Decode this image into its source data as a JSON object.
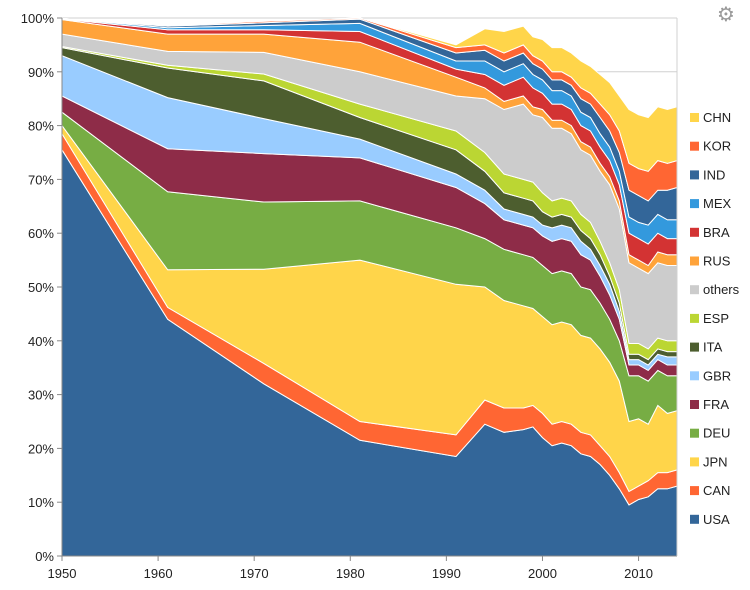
{
  "settings_icon": "gear-icon",
  "chart_data": {
    "type": "area",
    "stacked": true,
    "normalized_percent": true,
    "title": "",
    "xlabel": "",
    "ylabel": "",
    "xlim": [
      1950,
      2014
    ],
    "ylim": [
      0,
      100
    ],
    "x_ticks": [
      1950,
      1960,
      1970,
      1980,
      1990,
      2000,
      2010
    ],
    "y_ticks": [
      "0%",
      "10%",
      "20%",
      "30%",
      "40%",
      "50%",
      "60%",
      "70%",
      "80%",
      "90%",
      "100%"
    ],
    "grid": "horizontal",
    "legend_position": "right",
    "x": [
      1950,
      1961,
      1971,
      1981,
      1991,
      1994,
      1996,
      1998,
      1999,
      2000,
      2001,
      2002,
      2003,
      2004,
      2005,
      2006,
      2007,
      2008,
      2009,
      2010,
      2011,
      2012,
      2013,
      2014
    ],
    "series": [
      {
        "name": "USA",
        "color": "#336699",
        "values": [
          75.5,
          44,
          32,
          21.5,
          18.5,
          24.5,
          23,
          23.5,
          24,
          22,
          20.5,
          21,
          20.5,
          19,
          18.5,
          17,
          15,
          12.5,
          9.5,
          10.5,
          11,
          12.5,
          12.5,
          13
        ]
      },
      {
        "name": "CAN",
        "color": "#FF6633",
        "values": [
          3,
          2.2,
          3.8,
          3.5,
          4,
          4.5,
          4.5,
          4,
          4,
          4.5,
          4,
          4,
          4,
          4,
          4,
          3.5,
          3.5,
          3,
          2.5,
          2.5,
          3,
          3,
          3,
          3
        ]
      },
      {
        "name": "JPN",
        "color": "#FFD54A",
        "values": [
          1.5,
          7,
          17.5,
          30,
          28,
          21,
          20,
          19,
          18,
          18,
          18.5,
          18.5,
          18.5,
          18,
          18,
          18,
          17.5,
          17,
          13,
          12.5,
          10.5,
          12.5,
          11,
          11
        ]
      },
      {
        "name": "DEU",
        "color": "#77AD44",
        "values": [
          2.5,
          14.5,
          12.5,
          11,
          10.5,
          9,
          9.5,
          9.5,
          9.5,
          9.5,
          9.5,
          9.5,
          9.5,
          9,
          9,
          8.5,
          8,
          7.5,
          8.5,
          8,
          8,
          6.5,
          7,
          6.5
        ]
      },
      {
        "name": "FRA",
        "color": "#8E2C48",
        "values": [
          3,
          8,
          9,
          8,
          7.5,
          6.5,
          5.5,
          5.5,
          5.5,
          5.5,
          6,
          6,
          6,
          6,
          5.5,
          5,
          4.5,
          4,
          2,
          2,
          2,
          2,
          2,
          2
        ]
      },
      {
        "name": "GBR",
        "color": "#99CCFF",
        "values": [
          7.5,
          9.5,
          6.5,
          3.5,
          2.5,
          2.5,
          2,
          2,
          2,
          2,
          2.5,
          2.5,
          2.5,
          2.5,
          2,
          2,
          2,
          1.5,
          1,
          1,
          1,
          1,
          1.5,
          1.5
        ]
      },
      {
        "name": "ITA",
        "color": "#4D5E2F",
        "values": [
          1.5,
          5.5,
          7,
          4,
          4.5,
          3.5,
          3,
          3,
          3,
          2.5,
          2,
          2,
          2,
          2,
          2,
          2,
          1.5,
          1.5,
          1,
          1,
          1,
          1,
          1,
          1
        ]
      },
      {
        "name": "ESP",
        "color": "#BBD633",
        "values": [
          0.2,
          0.5,
          1.3,
          2.5,
          3.5,
          3.5,
          3.5,
          3.5,
          3.5,
          3.5,
          3,
          3,
          3,
          3,
          3,
          2.5,
          2.5,
          2.5,
          2,
          2,
          2,
          2,
          2,
          2
        ]
      },
      {
        "name": "others",
        "color": "#CCCCCC",
        "values": [
          2.3,
          2.6,
          4,
          6,
          6.5,
          10,
          12,
          14,
          12.5,
          14,
          13.5,
          13,
          12.5,
          12,
          12.5,
          13,
          14.5,
          15,
          15,
          14,
          14,
          14,
          14,
          14
        ]
      },
      {
        "name": "RUS",
        "color": "#FFA33A",
        "values": [
          2.7,
          3.2,
          3.4,
          5.5,
          3.5,
          2,
          1.5,
          1.5,
          1.5,
          1.5,
          1.5,
          1.5,
          1.5,
          1.5,
          1.5,
          1.5,
          1.5,
          1.5,
          1.5,
          1.5,
          1.5,
          2,
          2,
          2
        ]
      },
      {
        "name": "BRA",
        "color": "#D33333",
        "values": [
          0.1,
          0.8,
          0.8,
          2,
          1.5,
          2.5,
          3,
          3.5,
          3.5,
          3,
          3,
          3,
          3,
          3,
          3,
          3,
          3,
          3,
          4,
          4,
          4,
          3.5,
          3,
          3
        ]
      },
      {
        "name": "MEX",
        "color": "#3399DD",
        "values": [
          0.1,
          0.4,
          0.8,
          1.5,
          1.5,
          2.5,
          2.5,
          2.5,
          2.5,
          2.5,
          2.5,
          2.5,
          2.5,
          2.5,
          2.5,
          2.5,
          2.5,
          2.5,
          3,
          3,
          3.5,
          3.5,
          3.5,
          3.5
        ]
      },
      {
        "name": "IND",
        "color": "#336699",
        "values": [
          0,
          0.3,
          0.5,
          0.8,
          1.5,
          2,
          2,
          2,
          2,
          2,
          2,
          2,
          2,
          2.5,
          2.5,
          3,
          3,
          3.5,
          5,
          5,
          4.5,
          4.5,
          5.5,
          6
        ]
      },
      {
        "name": "KOR",
        "color": "#FF6633",
        "values": [
          0,
          0.1,
          0.3,
          0.8,
          1,
          1,
          1.5,
          1.5,
          1.5,
          1.5,
          1.5,
          1.5,
          1.5,
          2,
          2,
          2.5,
          3,
          4,
          5,
          5,
          5.5,
          5.5,
          5,
          5
        ]
      },
      {
        "name": "CHN",
        "color": "#FFD54A",
        "values": [
          0,
          0,
          0,
          0.1,
          0.5,
          3,
          4,
          3.5,
          3.5,
          4,
          4.5,
          4.5,
          4.5,
          5,
          5,
          5.5,
          6,
          6.5,
          10,
          10,
          10,
          10,
          10,
          10
        ]
      }
    ],
    "legend_order": [
      "CHN",
      "KOR",
      "IND",
      "MEX",
      "BRA",
      "RUS",
      "others",
      "ESP",
      "ITA",
      "GBR",
      "FRA",
      "DEU",
      "JPN",
      "CAN",
      "USA"
    ]
  }
}
